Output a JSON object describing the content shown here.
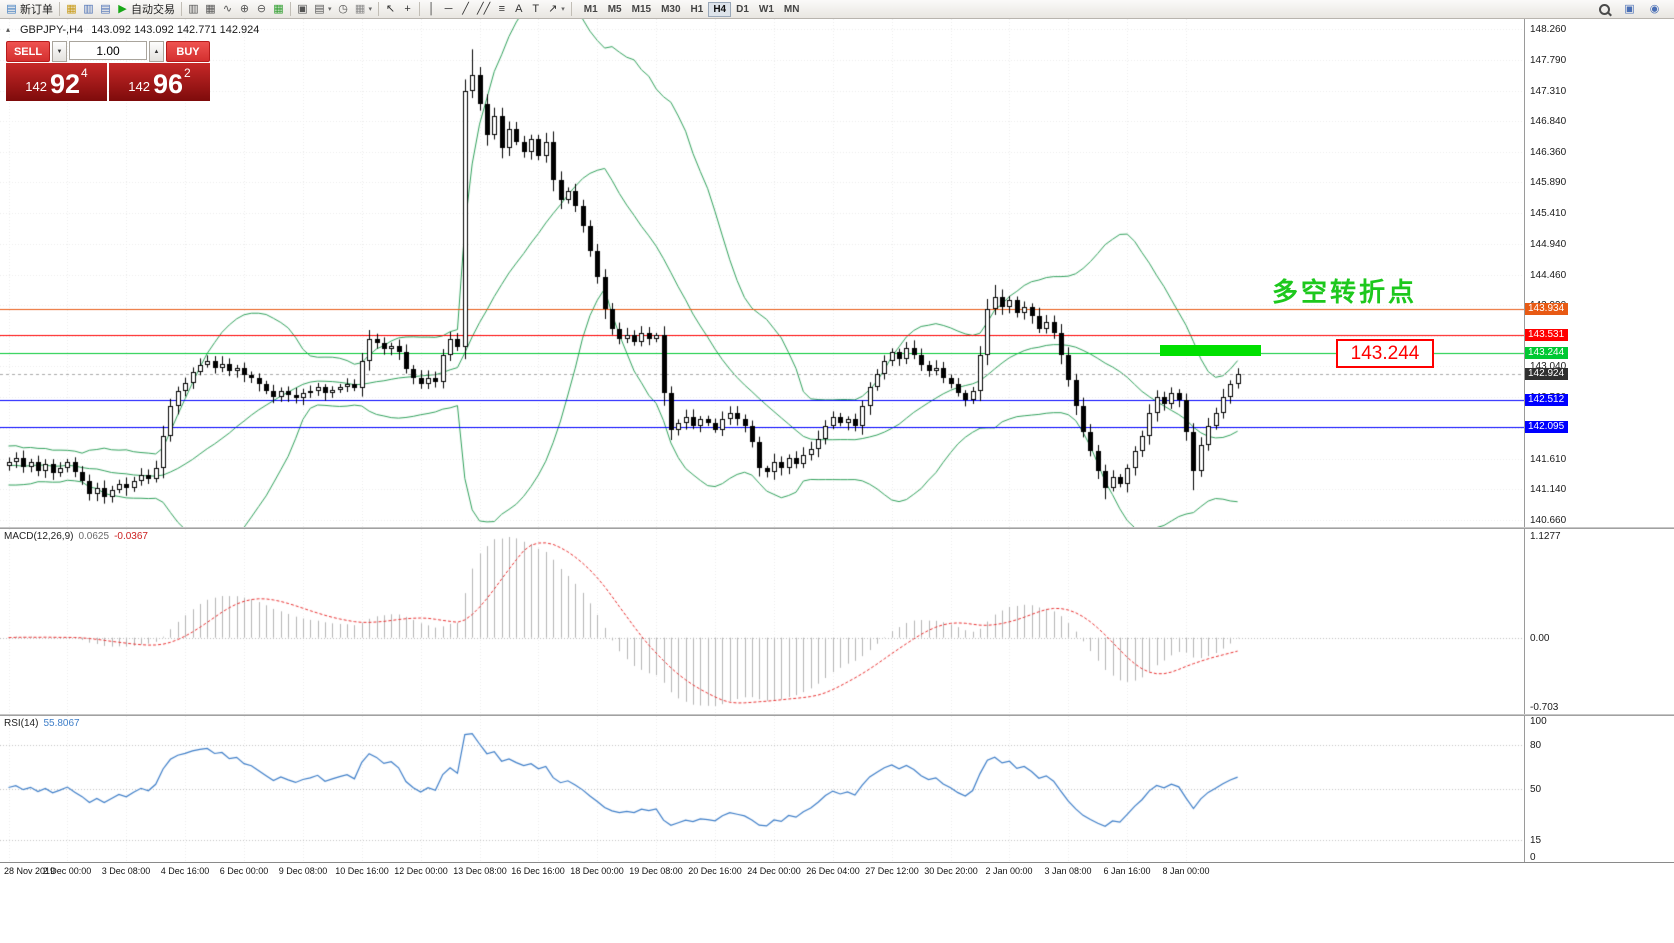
{
  "icons": {
    "new_order": "▤",
    "profiles": "▦",
    "market_watch": "▥",
    "data_window": "▤",
    "autotrading_play": "▶",
    "chart_bars": "▥",
    "chart_candles": "▦",
    "chart_line": "∿",
    "zoom_in": "⊕",
    "zoom_out": "⊖",
    "tile_windows": "▦",
    "cascade": "▣",
    "new_chart": "▤",
    "clock": "◷",
    "grid": "▦",
    "cursor": "↖",
    "crosshair": "+",
    "vline": "│",
    "hline": "─",
    "trendline": "╱",
    "channel": "╱╱",
    "fibonacci": "≡",
    "text": "A",
    "label": "T",
    "arrows": "↗",
    "dropdown": "▾",
    "spinner_up": "▲",
    "spinner_down": "▼",
    "collapse": "▴",
    "community": "▣",
    "profile": "◉"
  },
  "toolbar": {
    "items": [
      {
        "name": "new-order-button",
        "icon": "new_order",
        "color": "#3a7abf",
        "label": "新订单"
      },
      {
        "sep": true
      },
      {
        "name": "profiles-button",
        "icon": "profiles",
        "color": "#c79810"
      },
      {
        "name": "market-watch-button",
        "icon": "market_watch",
        "color": "#4a6fb5"
      },
      {
        "name": "data-window-button",
        "icon": "data_window",
        "color": "#4a6fb5"
      },
      {
        "name": "autotrading-button",
        "icon": "autotrading_play",
        "color": "#18a818",
        "label": "自动交易"
      },
      {
        "sep": true
      },
      {
        "name": "chart-bars-button",
        "icon": "chart_bars",
        "color": "#555555"
      },
      {
        "name": "chart-candles-button",
        "icon": "chart_candles",
        "color": "#555555"
      },
      {
        "name": "chart-line-button",
        "icon": "chart_line",
        "color": "#555555"
      },
      {
        "name": "zoom-in-button",
        "icon": "zoom_in",
        "color": "#555555"
      },
      {
        "name": "zoom-out-button",
        "icon": "zoom_out",
        "color": "#555555"
      },
      {
        "name": "tile-windows-button",
        "icon": "tile_windows",
        "color": "#2e9e2e"
      },
      {
        "sep": true
      },
      {
        "name": "arrange-windows-button",
        "icon": "cascade",
        "color": "#555555"
      },
      {
        "name": "new-chart-button",
        "icon": "new_chart",
        "color": "#555555",
        "dropdown": true
      },
      {
        "name": "period-clock-button",
        "icon": "clock",
        "color": "#555555"
      },
      {
        "name": "indicators-button",
        "icon": "grid",
        "color": "#8a8a8a",
        "dropdown": true
      },
      {
        "sep": true
      },
      {
        "name": "cursor-button",
        "icon": "cursor",
        "color": "#333333"
      },
      {
        "name": "crosshair-button",
        "icon": "crosshair",
        "color": "#333333"
      },
      {
        "sep": true
      },
      {
        "name": "vertical-line-button",
        "icon": "vline",
        "color": "#333333"
      },
      {
        "name": "horizontal-line-button",
        "icon": "hline",
        "color": "#333333"
      },
      {
        "name": "trendline-button",
        "icon": "trendline",
        "color": "#333333"
      },
      {
        "name": "channel-button",
        "icon": "channel",
        "color": "#333333"
      },
      {
        "name": "fibonacci-button",
        "icon": "fibonacci",
        "color": "#333333"
      },
      {
        "name": "text-button",
        "icon": "text",
        "color": "#333333"
      },
      {
        "name": "label-button",
        "icon": "label",
        "color": "#333333"
      },
      {
        "name": "arrows-button",
        "icon": "arrows",
        "color": "#333333",
        "dropdown": true
      },
      {
        "sep": true
      }
    ],
    "timeframes": [
      "M1",
      "M5",
      "M15",
      "M30",
      "H1",
      "H4",
      "D1",
      "W1",
      "MN"
    ],
    "active_timeframe": "H4"
  },
  "chart": {
    "title": "GBPJPY-,H4",
    "ohlc_text": "143.092 143.092 142.771 142.924",
    "trade_panel": {
      "sell_label": "SELL",
      "buy_label": "BUY",
      "volume": "1.00",
      "sell_price": {
        "main": "142",
        "pips": "92",
        "frac": "4"
      },
      "buy_price": {
        "main": "142",
        "pips": "96",
        "frac": "2"
      }
    },
    "y_axis_labels": [
      "148.260",
      "147.790",
      "147.310",
      "146.840",
      "146.360",
      "145.890",
      "145.410",
      "144.940",
      "144.460",
      "143.990",
      "143.510",
      "143.040",
      "142.560",
      "142.080",
      "141.610",
      "141.140",
      "140.660"
    ],
    "x_axis_labels": [
      "28 Nov 2019",
      "2 Dec 00:00",
      "3 Dec 08:00",
      "4 Dec 16:00",
      "6 Dec 00:00",
      "9 Dec 08:00",
      "10 Dec 16:00",
      "12 Dec 00:00",
      "13 Dec 08:00",
      "16 Dec 16:00",
      "18 Dec 00:00",
      "19 Dec 08:00",
      "20 Dec 16:00",
      "24 Dec 00:00",
      "26 Dec 04:00",
      "27 Dec 12:00",
      "30 Dec 20:00",
      "2 Jan 00:00",
      "3 Jan 08:00",
      "6 Jan 16:00",
      "8 Jan 00:00"
    ],
    "levels": [
      {
        "price": 143.934,
        "label": "143.934",
        "color": "#E85A14"
      },
      {
        "price": 143.531,
        "label": "143.531",
        "color": "#FF0000"
      },
      {
        "price": 143.244,
        "label": "143.244",
        "color": "#00C832"
      },
      {
        "price": 142.512,
        "label": "142.512",
        "color": "#0000FF"
      },
      {
        "price": 142.095,
        "label": "142.095",
        "color": "#0000FF"
      }
    ],
    "current_price": {
      "price": 142.924,
      "label": "142.924",
      "line_color": "#A8A8A8",
      "tag_color": "#2F2F2F"
    },
    "annotations": {
      "turning_point_text": "多空转折点",
      "turning_point_color": "#1DC81D",
      "highlight_bar_color": "#00E000",
      "price_box_text": "143.244",
      "price_box_color": "#FF0000"
    },
    "macd_header": {
      "name": "MACD(12,26,9)",
      "value": "0.0625",
      "signal": "-0.0367"
    },
    "rsi_header": {
      "name": "RSI(14)",
      "value": "55.8067"
    },
    "macd_scale": [
      "1.1277",
      "0.00",
      "-0.703"
    ],
    "rsi_scale": [
      "100",
      "80",
      "50",
      "15",
      "0"
    ]
  },
  "chart_data": {
    "type": "candlestick",
    "symbol": "GBPJPY-",
    "timeframe": "H4",
    "price_axis_range": [
      140.55,
      148.42
    ],
    "current_ohlc": {
      "open": 143.092,
      "high": 143.092,
      "low": 142.771,
      "close": 142.924
    },
    "first_open": 141.5,
    "closes": [
      141.55,
      141.62,
      141.48,
      141.56,
      141.42,
      141.52,
      141.38,
      141.46,
      141.55,
      141.4,
      141.26,
      141.06,
      141.16,
      141.02,
      141.12,
      141.22,
      141.15,
      141.26,
      141.36,
      141.3,
      141.46,
      141.96,
      142.42,
      142.66,
      142.78,
      142.95,
      143.06,
      143.12,
      143.02,
      143.08,
      142.96,
      143.02,
      142.9,
      142.86,
      142.76,
      142.66,
      142.56,
      142.66,
      142.6,
      142.55,
      142.62,
      142.66,
      142.72,
      142.62,
      142.67,
      142.72,
      142.76,
      142.7,
      143.12,
      143.46,
      143.4,
      143.3,
      143.36,
      143.26,
      143.0,
      142.86,
      142.76,
      142.86,
      142.8,
      143.22,
      143.46,
      143.34,
      147.3,
      147.56,
      147.1,
      146.62,
      146.92,
      146.42,
      146.72,
      146.52,
      146.36,
      146.56,
      146.3,
      146.52,
      145.92,
      145.62,
      145.76,
      145.52,
      145.22,
      144.82,
      144.42,
      143.92,
      143.62,
      143.46,
      143.52,
      143.42,
      143.56,
      143.46,
      143.52,
      142.62,
      142.06,
      142.16,
      142.26,
      142.12,
      142.22,
      142.16,
      142.06,
      142.22,
      142.32,
      142.22,
      142.12,
      141.86,
      141.46,
      141.4,
      141.56,
      141.46,
      141.62,
      141.52,
      141.66,
      141.76,
      141.92,
      142.12,
      142.26,
      142.16,
      142.22,
      142.12,
      142.42,
      142.72,
      142.92,
      143.12,
      143.26,
      143.16,
      143.32,
      143.22,
      143.06,
      142.96,
      143.02,
      142.86,
      142.76,
      142.62,
      142.52,
      142.66,
      143.22,
      143.92,
      144.12,
      143.96,
      144.06,
      143.86,
      143.96,
      143.82,
      143.62,
      143.72,
      143.56,
      143.22,
      142.82,
      142.42,
      142.02,
      141.72,
      141.42,
      141.16,
      141.32,
      141.22,
      141.46,
      141.72,
      141.96,
      142.32,
      142.56,
      142.46,
      142.62,
      142.52,
      142.02,
      141.42,
      141.82,
      142.12,
      142.32,
      142.56,
      142.76,
      142.924
    ],
    "warmup": [
      141.5,
      141.7,
      141.35,
      141.6,
      141.25,
      141.55,
      141.75,
      141.4,
      141.2,
      141.5,
      141.7,
      141.45,
      141.25,
      141.6,
      141.75,
      141.35,
      141.22,
      141.52,
      141.72,
      141.42,
      141.28,
      141.58,
      141.74,
      141.38,
      141.24,
      141.54,
      141.7,
      141.44,
      141.3,
      141.62,
      141.74,
      141.4,
      141.26,
      141.56,
      141.68,
      141.46,
      141.32,
      141.6,
      141.5,
      141.44
    ],
    "extremes": [
      {
        "index": 13,
        "low": 140.96
      },
      {
        "index": 62,
        "low": 143.15
      },
      {
        "index": 63,
        "high": 147.95
      },
      {
        "index": 90,
        "low": 141.95
      },
      {
        "index": 134,
        "high": 144.3
      },
      {
        "index": 149,
        "low": 140.98
      },
      {
        "index": 161,
        "low": 141.12
      }
    ],
    "overlays": {
      "bollinger": {
        "period": 20,
        "deviation": 2,
        "color": "#2FA05A"
      }
    },
    "indicators": [
      {
        "type": "macd",
        "fast": 12,
        "slow": 26,
        "signal": 9,
        "current_value": "0.0625",
        "current_signal": "-0.0367",
        "histogram_color": "#B4B4B4",
        "signal_color": "#E83030",
        "scale_labels": [
          "1.1277",
          "0.00",
          "-0.703"
        ]
      },
      {
        "type": "rsi",
        "period": 14,
        "current_value": "55.8067",
        "color": "#3E7EC8",
        "levels": [
          80,
          50,
          15
        ],
        "scale_labels": [
          "100",
          "80",
          "50",
          "15",
          "0"
        ]
      }
    ],
    "horizontal_levels": [
      143.934,
      143.531,
      143.244,
      142.512,
      142.095
    ],
    "current_price": 142.924
  }
}
